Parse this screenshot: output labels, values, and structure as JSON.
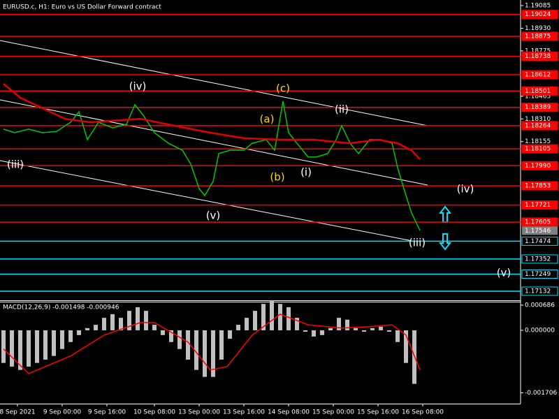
{
  "chart_data": [
    {
      "type": "line",
      "title": "EURUSD.c, H1:  Euro vs US Dollar Forward contract",
      "xlim": [
        -1.25,
        185
      ],
      "ylim": [
        1.1707,
        1.19123
      ],
      "yticks": [
        1.19085,
        {
          "value": 1.1893,
          "label": "1.18930"
        },
        1.18775,
        1.18465,
        {
          "value": 1.1831,
          "label": "1.18310"
        },
        1.18155
      ],
      "series": [
        {
          "color": "#00c800",
          "x": [
            0,
            4,
            9,
            14,
            19,
            24,
            27,
            30,
            34,
            39,
            44,
            47,
            50,
            54,
            59,
            64,
            67,
            70,
            72,
            75,
            77,
            81,
            86,
            89,
            94,
            97,
            100,
            102,
            105,
            109,
            112,
            116,
            119,
            121,
            124,
            127,
            131,
            135,
            139,
            141,
            144,
            146,
            149
          ],
          "values": [
            1.1824,
            1.18216,
            1.1824,
            1.18216,
            1.18225,
            1.18287,
            1.18359,
            1.18168,
            1.18287,
            1.18249,
            1.18273,
            1.18407,
            1.18335,
            1.18216,
            1.18144,
            1.18096,
            1.18001,
            1.17834,
            1.17786,
            1.17882,
            1.18073,
            1.18096,
            1.18096,
            1.18144,
            1.18168,
            1.18096,
            1.18431,
            1.18216,
            1.18144,
            1.18049,
            1.18049,
            1.18073,
            1.18168,
            1.18264,
            1.18144,
            1.18073,
            1.18168,
            1.18168,
            1.18144,
            1.17977,
            1.17786,
            1.17667,
            1.17547
          ]
        },
        {
          "color": "#e00000",
          "x": [
            0,
            6,
            14,
            22,
            31,
            49,
            61,
            74,
            86,
            99,
            111,
            124,
            134,
            141,
            146,
            149
          ],
          "values": [
            1.1855,
            1.18455,
            1.18383,
            1.18311,
            1.18287,
            1.18311,
            1.18264,
            1.18216,
            1.18178,
            1.18168,
            1.18168,
            1.18144,
            1.18168,
            1.18144,
            1.18096,
            1.18034
          ]
        }
      ],
      "levels": [
        {
          "value": 1.19024,
          "color": "#ff0000"
        },
        {
          "value": 1.18875,
          "color": "#ff0000"
        },
        {
          "value": 1.18738,
          "color": "#ff0000"
        },
        {
          "value": 1.18612,
          "color": "#ff0000"
        },
        {
          "value": 1.18501,
          "color": "#ff0000"
        },
        {
          "value": 1.18389,
          "color": "#ff0000"
        },
        {
          "value": 1.18264,
          "color": "#ff0000"
        },
        {
          "value": 1.18105,
          "color": "#ff0000"
        },
        {
          "value": 1.1799,
          "label": "1.17990",
          "color": "#ff0000"
        },
        {
          "value": 1.17853,
          "color": "#ff0000"
        },
        {
          "value": 1.17721,
          "color": "#ff0000"
        },
        {
          "value": 1.17605,
          "color": "#ff0000"
        },
        {
          "value": 1.17474,
          "color": "#00e0ff"
        },
        {
          "value": 1.17352,
          "color": "#00e0ff"
        },
        {
          "value": 1.17249,
          "color": "#00e0ff"
        },
        {
          "value": 1.17132,
          "color": "#00e0ff"
        }
      ],
      "last": 1.17546,
      "annotations": [
        {
          "text": "(iii)",
          "color": "#ffffff"
        },
        {
          "text": "(iv)",
          "color": "#ffffff"
        },
        {
          "text": "(v)",
          "color": "#ffffff"
        },
        {
          "text": "(a)",
          "color": "#ffd700"
        },
        {
          "text": "(b)",
          "color": "#ffd700"
        },
        {
          "text": "(c)",
          "color": "#ffd700"
        },
        {
          "text": "(i)",
          "color": "#ffffff"
        },
        {
          "text": "(ii)",
          "color": "#ffffff"
        },
        {
          "text": "(iv)",
          "color": "#ffffff"
        },
        {
          "text": "(iii)",
          "color": "#ffffff"
        },
        {
          "text": "(v)",
          "color": "#ffffff"
        }
      ]
    },
    {
      "type": "bar",
      "title": "MACD(12,26,9) -0.001498 -0.000946",
      "xlim": [
        -1.25,
        185
      ],
      "ylim": [
        -0.002,
        0.00078
      ],
      "yticks": [
        0.000686,
        {
          "value": 0,
          "label": "0.000000"
        },
        -0.001706
      ],
      "xticks": [
        {
          "value": 5,
          "label": "8 Sep 2021"
        },
        {
          "value": 21,
          "label": "9 Sep 00:00"
        },
        {
          "value": 37,
          "label": "9 Sep 16:00"
        },
        {
          "value": 54,
          "label": "10 Sep 08:00"
        },
        {
          "value": 70,
          "label": "13 Sep 00:00"
        },
        {
          "value": 86,
          "label": "13 Sep 16:00"
        },
        {
          "value": 102,
          "label": "14 Sep 08:00"
        },
        {
          "value": 118,
          "label": "15 Sep 00:00"
        },
        {
          "value": 134,
          "label": "15 Sep 16:00"
        },
        {
          "value": 150,
          "label": "16 Sep 08:00"
        }
      ],
      "series": [
        {
          "type": "bar",
          "color": "#c0c0c0",
          "x": [
            0,
            3,
            6,
            9,
            12,
            15,
            18,
            21,
            24,
            27,
            30,
            33,
            36,
            39,
            42,
            45,
            48,
            51,
            54,
            57,
            60,
            63,
            66,
            69,
            72,
            75,
            78,
            81,
            84,
            87,
            90,
            93,
            96,
            99,
            102,
            105,
            108,
            111,
            114,
            117,
            120,
            123,
            126,
            129,
            132,
            135,
            138,
            141,
            144,
            147
          ],
          "values": [
            -0.00089,
            -0.00099,
            -0.00108,
            -0.00099,
            -0.00089,
            -0.0008,
            -0.0007,
            -0.00051,
            -0.00032,
            -0.00013,
            6e-05,
            0.00015,
            0.00034,
            0.00044,
            0.00034,
            0.00053,
            0.00063,
            0.00053,
            0.00015,
            -0.00013,
            -0.00032,
            -0.00051,
            -0.0008,
            -0.00108,
            -0.00127,
            -0.00127,
            -0.0008,
            -0.00023,
            0.00015,
            0.00034,
            0.00053,
            0.00072,
            0.00082,
            0.00072,
            0.00063,
            0.00034,
            -4e-05,
            -0.00017,
            -0.00013,
            6e-05,
            0.00034,
            0.00029,
            6e-05,
            -4e-05,
            6e-05,
            0.0001,
            -4e-05,
            -0.00032,
            -0.00089,
            -0.00146
          ]
        },
        {
          "type": "line",
          "color": "#ff0000",
          "x": [
            0,
            9,
            24,
            36,
            49,
            54,
            66,
            74,
            80,
            89,
            99,
            109,
            121,
            131,
            139,
            144,
            149
          ],
          "values": [
            -0.00051,
            -0.00118,
            -0.0007,
            -0.00013,
            0.00021,
            0.00021,
            -0.00032,
            -0.00108,
            -0.00099,
            -0.00013,
            0.00044,
            0.00015,
            6e-05,
            0.0001,
            0.00015,
            -0.00013,
            -0.00108
          ]
        }
      ]
    }
  ]
}
